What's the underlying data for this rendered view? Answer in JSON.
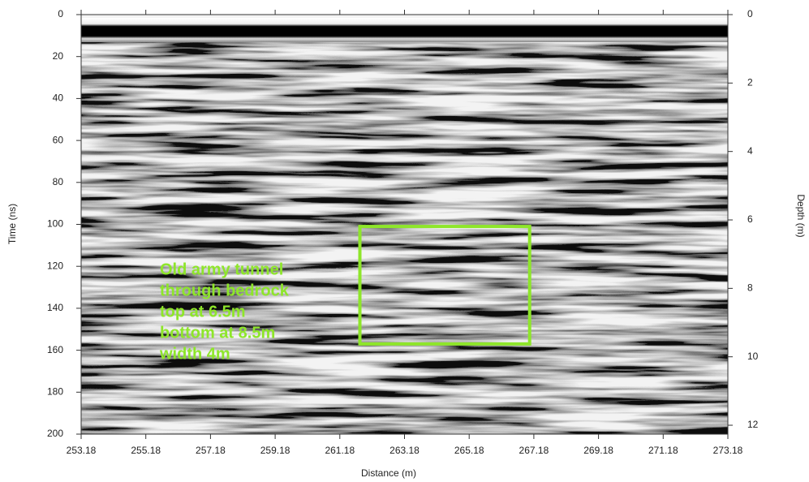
{
  "chart_data": {
    "type": "radargram",
    "xlabel": "Distance (m)",
    "ylabel": "Time (ns)",
    "y2label": "Depth (m)",
    "xlim": [
      253.18,
      273.18
    ],
    "xticks": [
      253.18,
      255.18,
      257.18,
      259.18,
      261.18,
      263.18,
      265.18,
      267.18,
      269.18,
      271.18,
      273.18
    ],
    "ylim": [
      0,
      200
    ],
    "yticks": [
      0,
      20,
      40,
      60,
      80,
      100,
      120,
      140,
      160,
      180,
      200
    ],
    "y2lim": [
      0,
      12.26
    ],
    "y2ticks": [
      0,
      2,
      4,
      6,
      8,
      10,
      12
    ],
    "annotation": {
      "lines": [
        "Old army tunnel",
        "through bedrock",
        "top at 6.5m",
        "bottom at 8.5m",
        "width 4m"
      ],
      "box_x": [
        261.8,
        267.05
      ],
      "box_y": [
        101,
        157
      ],
      "color": "#8ee62a"
    }
  }
}
